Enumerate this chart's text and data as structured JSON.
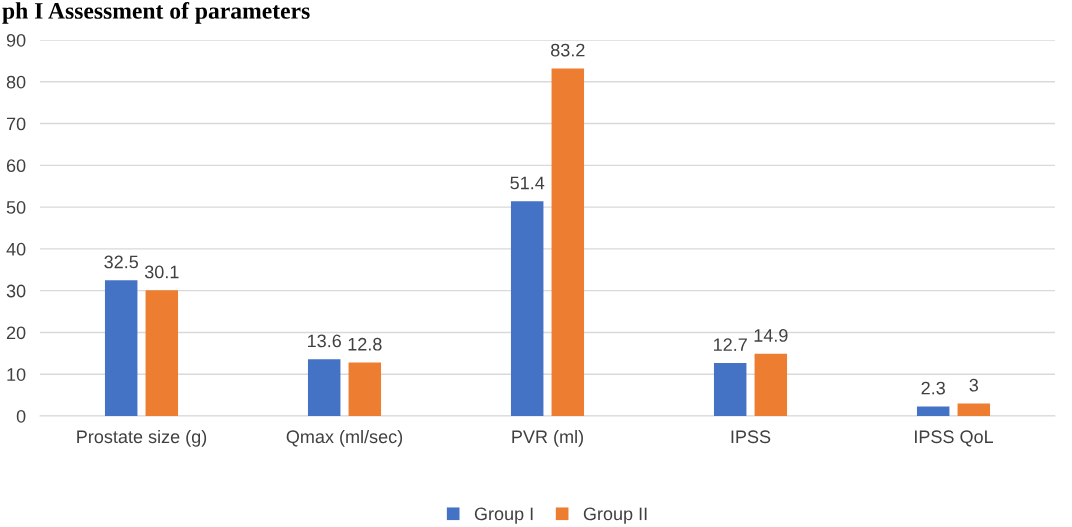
{
  "chart_data": {
    "type": "bar",
    "title": "ph I Assessment of parameters",
    "categories": [
      "Prostate size (g)",
      "Qmax (ml/sec)",
      "PVR (ml)",
      "IPSS",
      "IPSS QoL"
    ],
    "series": [
      {
        "name": "Group I",
        "color": "#4472c4",
        "values": [
          32.5,
          13.6,
          51.4,
          12.7,
          2.3
        ]
      },
      {
        "name": "Group II",
        "color": "#ed7d31",
        "values": [
          30.1,
          12.8,
          83.2,
          14.9,
          3
        ]
      }
    ],
    "ylim": [
      0,
      90
    ],
    "yticks": [
      0,
      10,
      20,
      30,
      40,
      50,
      60,
      70,
      80,
      90
    ],
    "grid": "y",
    "legend": "bottom",
    "data_labels": true
  }
}
